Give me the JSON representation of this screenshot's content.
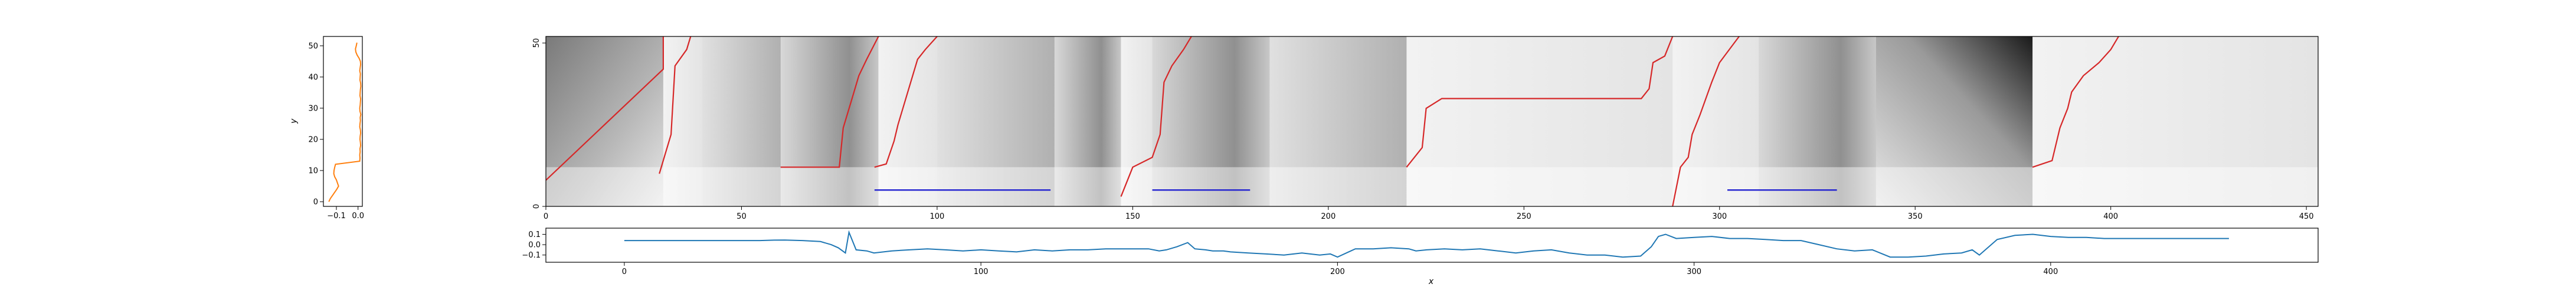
{
  "chart_data": [
    {
      "type": "line",
      "panel": "left-profile",
      "xlabel": "",
      "ylabel": "y",
      "xlim": [
        -0.16,
        0.02
      ],
      "ylim": [
        -1.5,
        53
      ],
      "xticks": [
        -0.1,
        0.0
      ],
      "xtick_labels": [
        "−0.1",
        "0.0"
      ],
      "yticks": [
        0,
        10,
        20,
        30,
        40,
        50
      ],
      "ytick_labels": [
        "0",
        "10",
        "20",
        "30",
        "40",
        "50"
      ],
      "series": [
        {
          "color": "#ff7f0e",
          "x": [
            -0.135,
            -0.128,
            -0.118,
            -0.108,
            -0.098,
            -0.09,
            -0.095,
            -0.1,
            -0.108,
            -0.112,
            -0.111,
            -0.108,
            -0.104,
            0.008,
            0.009,
            0.008,
            0.01,
            0.009,
            0.012,
            0.011,
            0.009,
            0.01,
            0.012,
            0.011,
            0.008,
            0.009,
            0.011,
            0.01,
            0.013,
            0.009,
            0.008,
            0.01,
            0.011,
            0.012,
            0.009,
            0.01,
            0.011,
            0.013,
            0.012,
            0.009,
            0.01,
            0.011,
            0.008,
            0.01,
            0.012,
            0.011,
            0.005,
            -0.004,
            -0.01,
            -0.012,
            -0.008,
            -0.005
          ],
          "y": [
            0,
            1,
            2,
            3,
            4,
            5,
            6,
            7,
            8,
            9,
            10,
            11,
            12,
            13,
            14,
            15,
            16,
            17,
            18,
            19,
            20,
            21,
            22,
            23,
            24,
            25,
            26,
            27,
            28,
            29,
            30,
            31,
            32,
            33,
            34,
            35,
            36,
            37,
            38,
            39,
            40,
            41,
            42,
            43,
            44,
            45,
            46,
            47,
            48,
            49,
            50,
            51
          ]
        }
      ]
    },
    {
      "type": "heatmap",
      "panel": "main-image",
      "xlim": [
        0,
        453
      ],
      "ylim": [
        0,
        52
      ],
      "xticks": [
        0,
        50,
        100,
        150,
        200,
        250,
        300,
        350,
        400,
        450
      ],
      "xtick_labels": [
        "0",
        "50",
        "100",
        "150",
        "200",
        "250",
        "300",
        "350",
        "400",
        "450"
      ],
      "yticks": [
        0,
        50
      ],
      "ytick_labels": [
        "0",
        "50"
      ],
      "colormap": "gray_r",
      "segments": [
        {
          "x0": 0,
          "x1": 30,
          "kind": "diag-dark"
        },
        {
          "x0": 30,
          "x1": 40,
          "kind": "light"
        },
        {
          "x0": 40,
          "x1": 60,
          "kind": "mid"
        },
        {
          "x0": 60,
          "x1": 85,
          "kind": "mid-dark"
        },
        {
          "x0": 85,
          "x1": 100,
          "kind": "light"
        },
        {
          "x0": 100,
          "x1": 130,
          "kind": "mid"
        },
        {
          "x0": 130,
          "x1": 147,
          "kind": "mid-dark"
        },
        {
          "x0": 147,
          "x1": 155,
          "kind": "light"
        },
        {
          "x0": 155,
          "x1": 185,
          "kind": "mid-dark"
        },
        {
          "x0": 185,
          "x1": 220,
          "kind": "mid"
        },
        {
          "x0": 220,
          "x1": 288,
          "kind": "light"
        },
        {
          "x0": 288,
          "x1": 310,
          "kind": "light"
        },
        {
          "x0": 310,
          "x1": 340,
          "kind": "mid-dark"
        },
        {
          "x0": 340,
          "x1": 380,
          "kind": "dark-corner"
        },
        {
          "x0": 380,
          "x1": 453,
          "kind": "light"
        }
      ],
      "red_paths": [
        [
          [
            0,
            8
          ],
          [
            30,
            42
          ],
          [
            30,
            52
          ]
        ],
        [
          [
            29,
            10
          ],
          [
            32,
            22
          ],
          [
            33,
            43
          ],
          [
            36,
            48
          ],
          [
            37,
            52
          ]
        ],
        [
          [
            60,
            12
          ],
          [
            75,
            12
          ],
          [
            76,
            24
          ],
          [
            78,
            32
          ],
          [
            80,
            40
          ],
          [
            82,
            45
          ],
          [
            85,
            52
          ]
        ],
        [
          [
            84,
            12
          ],
          [
            87,
            13
          ],
          [
            89,
            20
          ],
          [
            90,
            25
          ],
          [
            95,
            45
          ],
          [
            97,
            48
          ],
          [
            100,
            52
          ]
        ],
        [
          [
            147,
            3
          ],
          [
            150,
            12
          ],
          [
            155,
            15
          ],
          [
            157,
            22
          ],
          [
            158,
            38
          ],
          [
            160,
            43
          ],
          [
            163,
            48
          ],
          [
            165,
            52
          ]
        ],
        [
          [
            220,
            12
          ],
          [
            224,
            18
          ],
          [
            225,
            30
          ],
          [
            229,
            33
          ],
          [
            280,
            33
          ],
          [
            282,
            36
          ],
          [
            283,
            44
          ],
          [
            286,
            46
          ],
          [
            288,
            52
          ]
        ],
        [
          [
            288,
            0
          ],
          [
            290,
            12
          ],
          [
            292,
            15
          ],
          [
            293,
            22
          ],
          [
            295,
            28
          ],
          [
            298,
            38
          ],
          [
            300,
            44
          ],
          [
            305,
            52
          ]
        ],
        [
          [
            380,
            12
          ],
          [
            385,
            14
          ],
          [
            387,
            24
          ],
          [
            389,
            30
          ],
          [
            390,
            35
          ],
          [
            393,
            40
          ],
          [
            397,
            44
          ],
          [
            400,
            48
          ],
          [
            402,
            52
          ]
        ]
      ],
      "blue_segments": [
        {
          "x0": 84,
          "x1": 129,
          "y": 5
        },
        {
          "x0": 155,
          "x1": 180,
          "y": 5
        },
        {
          "x0": 302,
          "x1": 330,
          "y": 5
        }
      ]
    },
    {
      "type": "line",
      "panel": "bottom-profile",
      "xlabel": "x",
      "ylabel": "",
      "xlim": [
        -22,
        475
      ],
      "ylim": [
        -0.17,
        0.16
      ],
      "xticks": [
        0,
        100,
        200,
        300,
        400
      ],
      "xtick_labels": [
        "0",
        "100",
        "200",
        "300",
        "400"
      ],
      "yticks": [
        0.1,
        0.0,
        -0.1
      ],
      "ytick_labels": [
        "0.1",
        "0.0",
        "−0.1"
      ],
      "series": [
        {
          "color": "#1f77b4",
          "x": [
            0,
            10,
            20,
            30,
            35,
            38,
            40,
            42,
            45,
            50,
            55,
            58,
            60,
            62,
            63,
            65,
            68,
            70,
            75,
            80,
            85,
            90,
            95,
            100,
            105,
            110,
            115,
            120,
            125,
            130,
            135,
            140,
            147,
            150,
            152,
            155,
            158,
            160,
            163,
            165,
            168,
            170,
            175,
            180,
            185,
            190,
            195,
            198,
            200,
            205,
            210,
            215,
            220,
            222,
            225,
            230,
            235,
            240,
            245,
            250,
            255,
            260,
            265,
            270,
            275,
            280,
            285,
            288,
            290,
            292,
            295,
            300,
            305,
            310,
            315,
            320,
            325,
            330,
            335,
            340,
            345,
            350,
            355,
            360,
            365,
            370,
            375,
            378,
            380,
            385,
            390,
            395,
            400,
            405,
            410,
            415,
            420,
            425,
            430,
            435,
            440,
            445,
            450
          ],
          "y": [
            0.04,
            0.04,
            0.04,
            0.04,
            0.04,
            0.04,
            0.042,
            0.044,
            0.045,
            0.04,
            0.03,
            0.0,
            -0.03,
            -0.08,
            0.12,
            -0.05,
            -0.06,
            -0.08,
            -0.06,
            -0.05,
            -0.04,
            -0.05,
            -0.06,
            -0.05,
            -0.06,
            -0.07,
            -0.05,
            -0.06,
            -0.05,
            -0.05,
            -0.04,
            -0.04,
            -0.04,
            -0.06,
            -0.05,
            -0.02,
            0.02,
            -0.04,
            -0.05,
            -0.06,
            -0.06,
            -0.07,
            -0.08,
            -0.09,
            -0.1,
            -0.08,
            -0.1,
            -0.09,
            -0.12,
            -0.04,
            -0.04,
            -0.03,
            -0.04,
            -0.06,
            -0.05,
            -0.04,
            -0.05,
            -0.04,
            -0.06,
            -0.08,
            -0.06,
            -0.05,
            -0.08,
            -0.1,
            -0.1,
            -0.12,
            -0.11,
            -0.02,
            0.08,
            0.1,
            0.06,
            0.07,
            0.08,
            0.06,
            0.06,
            0.05,
            0.04,
            0.04,
            0.0,
            -0.04,
            -0.06,
            -0.05,
            -0.12,
            -0.12,
            -0.11,
            -0.09,
            -0.08,
            -0.05,
            -0.1,
            0.05,
            0.09,
            0.1,
            0.08,
            0.07,
            0.07,
            0.06,
            0.06,
            0.06,
            0.06,
            0.06,
            0.06,
            0.06,
            0.06
          ]
        }
      ]
    }
  ]
}
